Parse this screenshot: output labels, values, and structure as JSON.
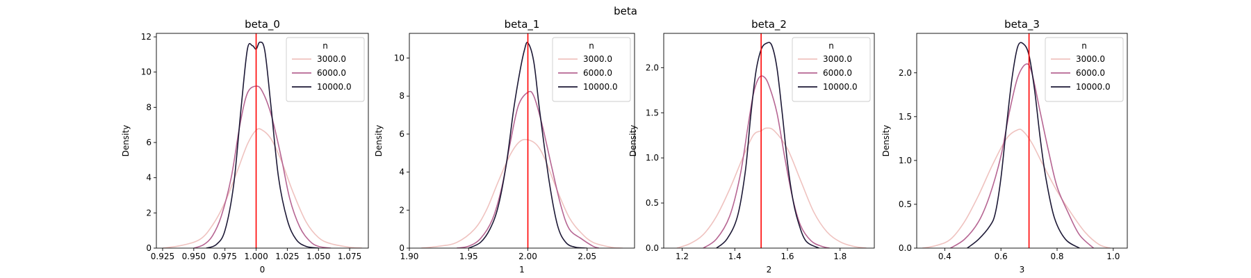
{
  "figure": {
    "suptitle": "beta"
  },
  "colors": {
    "n3000": "#efc2bf",
    "n6000": "#b66592",
    "n10000": "#1c1835",
    "truth": "#ff0000"
  },
  "chart_data": [
    {
      "type": "line",
      "title": "beta_0",
      "xlabel": "0",
      "ylabel": "Density",
      "xlim": [
        0.92,
        1.09
      ],
      "ylim": [
        0,
        12.2
      ],
      "xticks": [
        0.925,
        0.95,
        0.975,
        1.0,
        1.025,
        1.05,
        1.075
      ],
      "xtick_labels": [
        "0.925",
        "0.950",
        "0.975",
        "1.000",
        "1.025",
        "1.050",
        "1.075"
      ],
      "yticks": [
        0,
        2,
        4,
        6,
        8,
        10,
        12
      ],
      "ytick_labels": [
        "0",
        "2",
        "4",
        "6",
        "8",
        "10",
        "12"
      ],
      "true_value": 1.0,
      "legend": {
        "title": "n",
        "placement": "top-right"
      },
      "series": [
        {
          "name": "3000.0",
          "x": [
            0.925,
            0.94,
            0.955,
            0.965,
            0.975,
            0.985,
            0.993,
            1.0,
            1.005,
            1.012,
            1.02,
            1.03,
            1.04,
            1.05,
            1.06,
            1.075,
            1.085
          ],
          "y": [
            0,
            0.15,
            0.5,
            1.3,
            2.6,
            4.4,
            5.9,
            6.7,
            6.7,
            6.2,
            5.0,
            3.1,
            1.5,
            0.6,
            0.25,
            0.05,
            0
          ]
        },
        {
          "name": "6000.0",
          "x": [
            0.95,
            0.958,
            0.965,
            0.972,
            0.98,
            0.987,
            0.993,
            1.0,
            1.005,
            1.012,
            1.02,
            1.027,
            1.035,
            1.043,
            1.05,
            1.06
          ],
          "y": [
            0,
            0.2,
            0.7,
            1.8,
            4.0,
            7.0,
            8.8,
            9.2,
            8.9,
            7.6,
            5.2,
            2.8,
            1.2,
            0.4,
            0.1,
            0
          ]
        },
        {
          "name": "10000.0",
          "x": [
            0.96,
            0.968,
            0.975,
            0.982,
            0.988,
            0.993,
            0.997,
            1.0,
            1.003,
            1.007,
            1.012,
            1.018,
            1.025,
            1.032,
            1.04,
            1.05
          ],
          "y": [
            0,
            0.2,
            1.0,
            3.6,
            8.0,
            11.3,
            11.5,
            11.3,
            11.7,
            11.2,
            8.0,
            4.0,
            1.6,
            0.5,
            0.1,
            0
          ]
        }
      ]
    },
    {
      "type": "line",
      "title": "beta_1",
      "xlabel": "1",
      "ylabel": "Density",
      "xlim": [
        1.9,
        2.09
      ],
      "ylim": [
        0,
        11.3
      ],
      "xticks": [
        1.9,
        1.95,
        2.0,
        2.05
      ],
      "xtick_labels": [
        "1.90",
        "1.95",
        "2.00",
        "2.05"
      ],
      "yticks": [
        0,
        2,
        4,
        6,
        8,
        10
      ],
      "ytick_labels": [
        "0",
        "2",
        "4",
        "6",
        "8",
        "10"
      ],
      "true_value": 2.0,
      "legend": {
        "title": "n",
        "placement": "top-right"
      },
      "series": [
        {
          "name": "3000.0",
          "x": [
            1.91,
            1.925,
            1.94,
            1.955,
            1.965,
            1.975,
            1.985,
            1.993,
            2.0,
            2.008,
            2.015,
            2.025,
            2.035,
            2.045,
            2.055,
            2.07,
            2.08
          ],
          "y": [
            0,
            0.1,
            0.3,
            1.0,
            2.0,
            3.5,
            4.9,
            5.6,
            5.7,
            5.4,
            4.6,
            3.0,
            1.6,
            0.8,
            0.3,
            0.05,
            0
          ]
        },
        {
          "name": "6000.0",
          "x": [
            1.94,
            1.95,
            1.96,
            1.97,
            1.978,
            1.985,
            1.992,
            2.0,
            2.005,
            2.012,
            2.02,
            2.028,
            2.035,
            2.045,
            2.055,
            2.06
          ],
          "y": [
            0,
            0.1,
            0.5,
            1.5,
            3.2,
            5.5,
            7.5,
            8.2,
            8.0,
            6.5,
            4.3,
            2.2,
            1.0,
            0.5,
            0.1,
            0
          ]
        },
        {
          "name": "10000.0",
          "x": [
            1.95,
            1.96,
            1.968,
            1.975,
            1.982,
            1.988,
            1.993,
            1.997,
            2.0,
            2.005,
            2.01,
            2.018,
            2.025,
            2.032,
            2.04,
            2.05
          ],
          "y": [
            0,
            0.3,
            1.0,
            2.2,
            4.5,
            7.3,
            9.2,
            10.4,
            10.8,
            9.8,
            7.2,
            3.5,
            1.2,
            0.3,
            0.05,
            0
          ]
        }
      ]
    },
    {
      "type": "line",
      "title": "beta_2",
      "xlabel": "2",
      "ylabel": "Density",
      "xlim": [
        1.13,
        1.93
      ],
      "ylim": [
        0,
        2.38
      ],
      "xticks": [
        1.2,
        1.4,
        1.6,
        1.8
      ],
      "xtick_labels": [
        "1.2",
        "1.4",
        "1.6",
        "1.8"
      ],
      "yticks": [
        0,
        0.5,
        1.0,
        1.5,
        2.0
      ],
      "ytick_labels": [
        "0.0",
        "0.5",
        "1.0",
        "1.5",
        "2.0"
      ],
      "true_value": 1.5,
      "legend": {
        "title": "n",
        "placement": "top-right"
      },
      "series": [
        {
          "name": "3000.0",
          "x": [
            1.18,
            1.23,
            1.28,
            1.33,
            1.38,
            1.43,
            1.47,
            1.5,
            1.52,
            1.55,
            1.6,
            1.65,
            1.7,
            1.75,
            1.8,
            1.85,
            1.9
          ],
          "y": [
            0,
            0.05,
            0.15,
            0.35,
            0.65,
            1.0,
            1.25,
            1.3,
            1.33,
            1.3,
            1.1,
            0.75,
            0.4,
            0.18,
            0.07,
            0.02,
            0
          ]
        },
        {
          "name": "6000.0",
          "x": [
            1.28,
            1.33,
            1.38,
            1.42,
            1.45,
            1.47,
            1.49,
            1.51,
            1.53,
            1.56,
            1.59,
            1.62,
            1.65,
            1.69,
            1.73,
            1.76
          ],
          "y": [
            0,
            0.1,
            0.35,
            0.8,
            1.35,
            1.7,
            1.88,
            1.9,
            1.8,
            1.5,
            1.0,
            0.55,
            0.25,
            0.08,
            0.02,
            0
          ]
        },
        {
          "name": "10000.0",
          "x": [
            1.33,
            1.37,
            1.41,
            1.44,
            1.46,
            1.48,
            1.5,
            1.52,
            1.54,
            1.56,
            1.58,
            1.6,
            1.62,
            1.64,
            1.67,
            1.72
          ],
          "y": [
            0,
            0.1,
            0.35,
            0.85,
            1.45,
            1.95,
            2.2,
            2.27,
            2.25,
            2.0,
            1.5,
            0.95,
            0.55,
            0.3,
            0.08,
            0
          ]
        }
      ]
    },
    {
      "type": "line",
      "title": "beta_3",
      "xlabel": "3",
      "ylabel": "Density",
      "xlim": [
        0.3,
        1.05
      ],
      "ylim": [
        0,
        2.45
      ],
      "xticks": [
        0.4,
        0.6,
        0.8,
        1.0
      ],
      "xtick_labels": [
        "0.4",
        "0.6",
        "0.8",
        "1.0"
      ],
      "yticks": [
        0,
        0.5,
        1.0,
        1.5,
        2.0
      ],
      "ytick_labels": [
        "0.0",
        "0.5",
        "1.0",
        "1.5",
        "2.0"
      ],
      "true_value": 0.7,
      "legend": {
        "title": "n",
        "placement": "top-right"
      },
      "series": [
        {
          "name": "3000.0",
          "x": [
            0.32,
            0.37,
            0.42,
            0.47,
            0.52,
            0.57,
            0.62,
            0.66,
            0.68,
            0.71,
            0.75,
            0.8,
            0.85,
            0.9,
            0.95,
            0.99
          ],
          "y": [
            0,
            0.03,
            0.1,
            0.3,
            0.6,
            0.95,
            1.25,
            1.35,
            1.33,
            1.2,
            0.95,
            0.65,
            0.4,
            0.18,
            0.04,
            0
          ]
        },
        {
          "name": "6000.0",
          "x": [
            0.42,
            0.47,
            0.52,
            0.56,
            0.6,
            0.63,
            0.66,
            0.69,
            0.71,
            0.74,
            0.77,
            0.8,
            0.84,
            0.88,
            0.93
          ],
          "y": [
            0,
            0.1,
            0.3,
            0.6,
            1.05,
            1.55,
            1.95,
            2.1,
            2.0,
            1.55,
            1.1,
            0.7,
            0.4,
            0.15,
            0
          ]
        },
        {
          "name": "10000.0",
          "x": [
            0.48,
            0.52,
            0.56,
            0.58,
            0.6,
            0.62,
            0.64,
            0.66,
            0.68,
            0.7,
            0.72,
            0.74,
            0.76,
            0.79,
            0.83,
            0.88
          ],
          "y": [
            0,
            0.1,
            0.25,
            0.4,
            0.8,
            1.4,
            1.95,
            2.3,
            2.33,
            2.2,
            1.8,
            1.25,
            0.8,
            0.35,
            0.1,
            0
          ]
        }
      ]
    }
  ]
}
